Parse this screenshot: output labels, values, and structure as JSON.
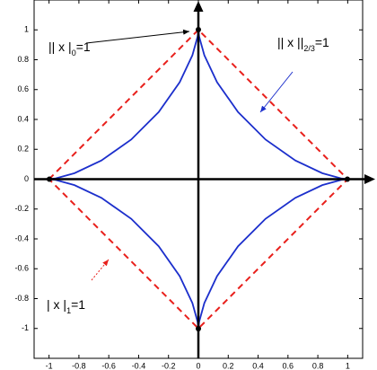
{
  "chart_data": {
    "type": "line",
    "xlim": [
      -1.1,
      1.1
    ],
    "ylim": [
      -1.2,
      1.2
    ],
    "xticks": [
      -1,
      -0.8,
      -0.6,
      -0.4,
      -0.2,
      0,
      0.2,
      0.4,
      0.6,
      0.8,
      1
    ],
    "yticks": [
      -1,
      -0.8,
      -0.6,
      -0.4,
      -0.2,
      0,
      0.2,
      0.4,
      0.6,
      0.8,
      1
    ],
    "series": [
      {
        "color": "#e8201c",
        "dash": true,
        "x": [
          -1,
          0,
          1,
          0,
          -1
        ],
        "values": [
          0,
          1,
          0,
          -1,
          0
        ]
      },
      {
        "color": "#1c2fcc",
        "dash": false,
        "x": [
          1,
          0.9551,
          0.8298,
          0.6495,
          0.4495,
          0.2656,
          0.125,
          0.04,
          0.0052,
          0,
          -0.0052,
          -0.04,
          -0.125,
          -0.2656,
          -0.4495,
          -0.6495,
          -0.8298,
          -0.9551,
          -1,
          -0.9551,
          -0.8298,
          -0.6495,
          -0.4495,
          -0.2656,
          -0.125,
          -0.04,
          -0.0052,
          0,
          0.0052,
          0.04,
          0.125,
          0.2656,
          0.4495,
          0.6495,
          0.8298,
          0.9551,
          1
        ],
        "values": [
          0,
          0.0052,
          0.04,
          0.125,
          0.2656,
          0.4495,
          0.6495,
          0.8298,
          0.9551,
          1,
          0.9551,
          0.8298,
          0.6495,
          0.4495,
          0.2656,
          0.125,
          0.04,
          0.0052,
          0,
          -0.0052,
          -0.04,
          -0.125,
          -0.2656,
          -0.4495,
          -0.6495,
          -0.8298,
          -0.9551,
          -1,
          -0.9551,
          -0.8298,
          -0.6495,
          -0.4495,
          -0.2656,
          -0.125,
          -0.04,
          -0.0052,
          0
        ]
      }
    ],
    "annotations": [
      {
        "text": "|| x |",
        "sub": "0",
        "rest": "=1"
      },
      {
        "text": "|| x ||",
        "sub": "2/3",
        "rest": "=1"
      },
      {
        "text": "|  x  |",
        "sub": "1",
        "rest": "=1"
      }
    ]
  }
}
